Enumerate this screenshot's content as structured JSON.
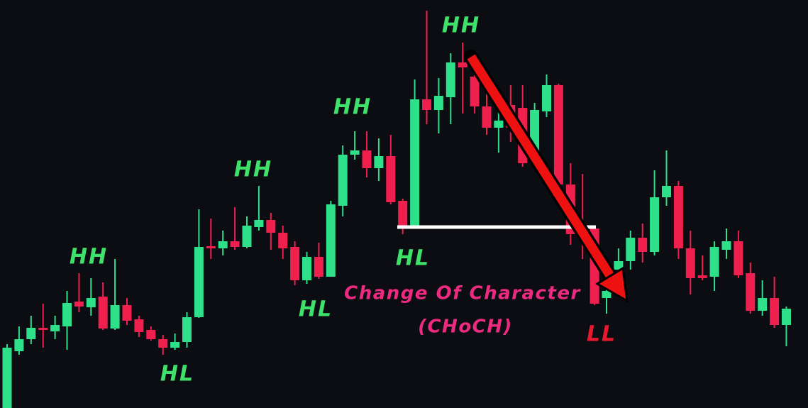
{
  "chart_data": {
    "type": "candlestick",
    "ylim": [
      0,
      575
    ],
    "up_color": "#2fe08a",
    "down_color": "#f0204e",
    "open": [
      0,
      80,
      97,
      113,
      108,
      115,
      150,
      142,
      157,
      112,
      145,
      125,
      110,
      97,
      85,
      93,
      128,
      228,
      225,
      235,
      227,
      255,
      265,
      247,
      227,
      180,
      213,
      185,
      285,
      357,
      363,
      338,
      355,
      292,
      257,
      435,
      420,
      438,
      487,
      467,
      425,
      395,
      427,
      423,
      345,
      418,
      455,
      315,
      255,
      253,
      155,
      195,
      207,
      240,
      220,
      297,
      313,
      225,
      187,
      185,
      223,
      235,
      190,
      137,
      155,
      117
    ],
    "high": [
      90,
      115,
      130,
      147,
      130,
      165,
      190,
      183,
      177,
      210,
      155,
      130,
      115,
      103,
      105,
      135,
      280,
      267,
      250,
      283,
      270,
      313,
      275,
      257,
      235,
      220,
      233,
      292,
      370,
      390,
      390,
      380,
      385,
      295,
      463,
      560,
      465,
      500,
      515,
      500,
      465,
      435,
      455,
      455,
      430,
      470,
      457,
      345,
      330,
      257,
      180,
      225,
      250,
      260,
      335,
      363,
      320,
      250,
      215,
      235,
      253,
      250,
      205,
      180,
      185,
      143
    ],
    "low": [
      0,
      75,
      90,
      85,
      97,
      82,
      135,
      130,
      110,
      110,
      117,
      100,
      95,
      75,
      82,
      85,
      127,
      210,
      215,
      223,
      225,
      250,
      223,
      210,
      173,
      175,
      182,
      185,
      270,
      350,
      325,
      320,
      287,
      245,
      257,
      400,
      387,
      400,
      415,
      415,
      385,
      360,
      375,
      340,
      340,
      410,
      310,
      230,
      210,
      145,
      133,
      190,
      195,
      205,
      215,
      285,
      210,
      160,
      180,
      165,
      210,
      183,
      133,
      130,
      113,
      87
    ],
    "close": [
      85,
      97,
      113,
      110,
      117,
      148,
      143,
      155,
      112,
      145,
      123,
      107,
      97,
      85,
      93,
      128,
      227,
      225,
      235,
      227,
      257,
      265,
      247,
      225,
      180,
      213,
      185,
      287,
      357,
      363,
      338,
      355,
      290,
      257,
      435,
      420,
      440,
      487,
      480,
      425,
      395,
      405,
      395,
      345,
      420,
      455,
      315,
      245,
      240,
      147,
      165,
      207,
      240,
      220,
      297,
      313,
      225,
      183,
      183,
      227,
      235,
      187,
      137,
      155,
      117,
      140
    ],
    "choch_level": 255,
    "level_color": "#ffffff",
    "annotations": [
      {
        "text": "HH",
        "color": "#3ee26b"
      },
      {
        "text": "HL",
        "color": "#3ee26b"
      },
      {
        "text": "HH",
        "color": "#3ee26b"
      },
      {
        "text": "HL",
        "color": "#3ee26b"
      },
      {
        "text": "HH",
        "color": "#3ee26b"
      },
      {
        "text": "HL",
        "color": "#3ee26b"
      },
      {
        "text": "HH",
        "color": "#3ee26b"
      },
      {
        "text": "Change Of Character",
        "color": "#ec2a7f"
      },
      {
        "text": "(CHoCH)",
        "color": "#ec2a7f"
      },
      {
        "text": "LL",
        "color": "#e8182e"
      }
    ]
  }
}
